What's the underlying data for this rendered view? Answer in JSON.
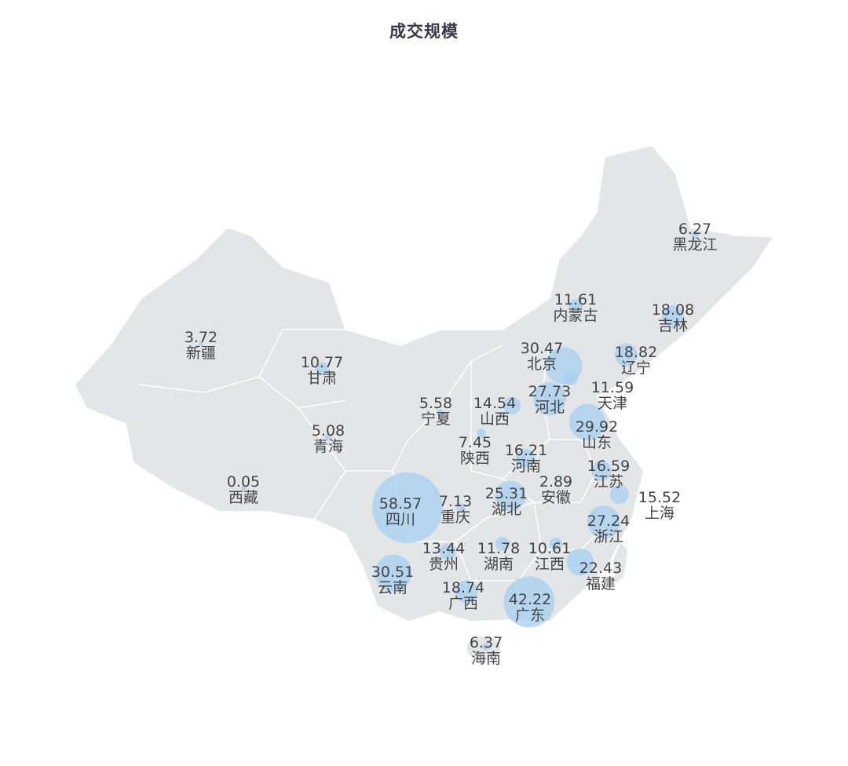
{
  "title": "成交规模",
  "colors": {
    "land": "#e4e5e7",
    "border": "#ffffff",
    "bubble": "#a6cff0",
    "label": "#444444"
  },
  "chart_data": {
    "type": "bubble-map",
    "region": "China",
    "title": "成交规模",
    "points": [
      {
        "name": "新疆",
        "value": "3.72"
      },
      {
        "name": "西藏",
        "value": "0.05"
      },
      {
        "name": "青海",
        "value": "5.08"
      },
      {
        "name": "甘肃",
        "value": "10.77"
      },
      {
        "name": "宁夏",
        "value": "5.58"
      },
      {
        "name": "陕西",
        "value": "7.45"
      },
      {
        "name": "内蒙古",
        "value": "11.61"
      },
      {
        "name": "黑龙江",
        "value": "6.27"
      },
      {
        "name": "吉林",
        "value": "18.08"
      },
      {
        "name": "辽宁",
        "value": "18.82"
      },
      {
        "name": "北京",
        "value": "30.47"
      },
      {
        "name": "天津",
        "value": "11.59"
      },
      {
        "name": "河北",
        "value": "27.73"
      },
      {
        "name": "山西",
        "value": "14.54"
      },
      {
        "name": "山东",
        "value": "29.92"
      },
      {
        "name": "河南",
        "value": "16.21"
      },
      {
        "name": "江苏",
        "value": "16.59"
      },
      {
        "name": "安徽",
        "value": "2.89"
      },
      {
        "name": "上海",
        "value": "15.52"
      },
      {
        "name": "湖北",
        "value": "25.31"
      },
      {
        "name": "四川",
        "value": "58.57"
      },
      {
        "name": "重庆",
        "value": "7.13"
      },
      {
        "name": "浙江",
        "value": "27.24"
      },
      {
        "name": "贵州",
        "value": "13.44"
      },
      {
        "name": "湖南",
        "value": "11.78"
      },
      {
        "name": "江西",
        "value": "10.61"
      },
      {
        "name": "福建",
        "value": "22.43"
      },
      {
        "name": "云南",
        "value": "30.51"
      },
      {
        "name": "广西",
        "value": "18.74"
      },
      {
        "name": "广东",
        "value": "42.22"
      },
      {
        "name": "海南",
        "value": "6.37"
      }
    ]
  }
}
